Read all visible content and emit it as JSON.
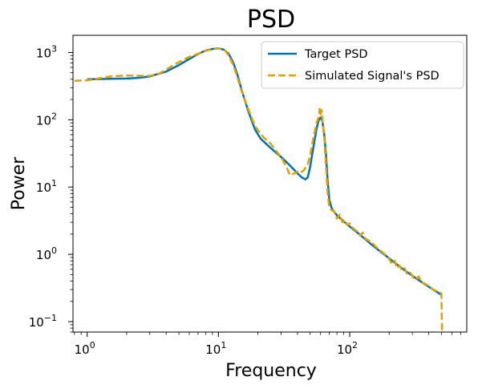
{
  "chart_data": {
    "type": "line",
    "title": "PSD",
    "xlabel": "Frequency",
    "ylabel": "Power",
    "xscale": "log",
    "yscale": "log",
    "xlim": [
      0.78,
      780
    ],
    "ylim": [
      0.07,
      1800
    ],
    "grid": false,
    "legend_position": "top-right",
    "x_ticks": [
      {
        "value": 1,
        "base": "10",
        "exp": "0"
      },
      {
        "value": 10,
        "base": "10",
        "exp": "1"
      },
      {
        "value": 100,
        "base": "10",
        "exp": "2"
      }
    ],
    "y_ticks": [
      {
        "value": 0.1,
        "base": "10",
        "exp": "−1"
      },
      {
        "value": 1,
        "base": "10",
        "exp": "0"
      },
      {
        "value": 10,
        "base": "10",
        "exp": "1"
      },
      {
        "value": 100,
        "base": "10",
        "exp": "2"
      },
      {
        "value": 1000,
        "base": "10",
        "exp": "3"
      }
    ],
    "series": [
      {
        "name": "Target PSD",
        "color": "#0072B2",
        "style": "solid",
        "points": [
          [
            1,
            400
          ],
          [
            1.5,
            405
          ],
          [
            2,
            410
          ],
          [
            2.5,
            420
          ],
          [
            3,
            440
          ],
          [
            4,
            520
          ],
          [
            5,
            650
          ],
          [
            6,
            800
          ],
          [
            7,
            950
          ],
          [
            8,
            1070
          ],
          [
            9,
            1130
          ],
          [
            10,
            1150
          ],
          [
            11,
            1100
          ],
          [
            12,
            950
          ],
          [
            13,
            700
          ],
          [
            14,
            460
          ],
          [
            15,
            280
          ],
          [
            17,
            130
          ],
          [
            19,
            72
          ],
          [
            21,
            52
          ],
          [
            25,
            38
          ],
          [
            30,
            28
          ],
          [
            35,
            21
          ],
          [
            40,
            16
          ],
          [
            43,
            14
          ],
          [
            46,
            13
          ],
          [
            48,
            14
          ],
          [
            50,
            20
          ],
          [
            53,
            40
          ],
          [
            56,
            75
          ],
          [
            58,
            98
          ],
          [
            60,
            108
          ],
          [
            62,
            95
          ],
          [
            64,
            60
          ],
          [
            66,
            30
          ],
          [
            68,
            12
          ],
          [
            70,
            6.5
          ],
          [
            73,
            4.8
          ],
          [
            80,
            3.8
          ],
          [
            90,
            3.1
          ],
          [
            100,
            2.6
          ],
          [
            120,
            1.95
          ],
          [
            150,
            1.35
          ],
          [
            200,
            0.87
          ],
          [
            250,
            0.62
          ],
          [
            300,
            0.48
          ],
          [
            400,
            0.33
          ],
          [
            500,
            0.25
          ]
        ]
      },
      {
        "name": "Simulated Signal's PSD",
        "color": "#E69F00",
        "style": "dashed",
        "points": [
          [
            0.8,
            380
          ],
          [
            1,
            385
          ],
          [
            1.2,
            410
          ],
          [
            1.5,
            440
          ],
          [
            2,
            455
          ],
          [
            2.5,
            450
          ],
          [
            3,
            450
          ],
          [
            3.5,
            480
          ],
          [
            4,
            560
          ],
          [
            5,
            720
          ],
          [
            6,
            860
          ],
          [
            7,
            960
          ],
          [
            8,
            1060
          ],
          [
            9,
            1120
          ],
          [
            10,
            1150
          ],
          [
            11,
            1120
          ],
          [
            12,
            900
          ],
          [
            13,
            640
          ],
          [
            14,
            420
          ],
          [
            15,
            270
          ],
          [
            17,
            140
          ],
          [
            19,
            80
          ],
          [
            22,
            55
          ],
          [
            25,
            44
          ],
          [
            28,
            33
          ],
          [
            30,
            28
          ],
          [
            33,
            20
          ],
          [
            35,
            15
          ],
          [
            38,
            16
          ],
          [
            40,
            17
          ],
          [
            42,
            16
          ],
          [
            45,
            18
          ],
          [
            48,
            22
          ],
          [
            50,
            30
          ],
          [
            53,
            55
          ],
          [
            56,
            90
          ],
          [
            58,
            110
          ],
          [
            59,
            145
          ],
          [
            60,
            120
          ],
          [
            61,
            140
          ],
          [
            62,
            100
          ],
          [
            64,
            55
          ],
          [
            66,
            20
          ],
          [
            68,
            8
          ],
          [
            70,
            5
          ],
          [
            73,
            4.5
          ],
          [
            76,
            4.4
          ],
          [
            80,
            3.4
          ],
          [
            84,
            3.9
          ],
          [
            88,
            3.0
          ],
          [
            92,
            3.2
          ],
          [
            96,
            2.7
          ],
          [
            100,
            2.9
          ],
          [
            105,
            2.5
          ],
          [
            110,
            2.3
          ],
          [
            115,
            2.2
          ],
          [
            120,
            1.9
          ],
          [
            126,
            2.1
          ],
          [
            132,
            1.7
          ],
          [
            140,
            1.6
          ],
          [
            148,
            1.5
          ],
          [
            155,
            1.35
          ],
          [
            162,
            1.25
          ],
          [
            170,
            1.15
          ],
          [
            180,
            1.05
          ],
          [
            190,
            0.95
          ],
          [
            200,
            0.85
          ],
          [
            210,
            0.72
          ],
          [
            220,
            0.8
          ],
          [
            230,
            0.62
          ],
          [
            240,
            0.68
          ],
          [
            250,
            0.58
          ],
          [
            262,
            0.62
          ],
          [
            275,
            0.5
          ],
          [
            290,
            0.53
          ],
          [
            305,
            0.45
          ],
          [
            320,
            0.42
          ],
          [
            335,
            0.47
          ],
          [
            350,
            0.39
          ],
          [
            370,
            0.37
          ],
          [
            390,
            0.35
          ],
          [
            410,
            0.33
          ],
          [
            430,
            0.3
          ],
          [
            450,
            0.29
          ],
          [
            470,
            0.28
          ],
          [
            490,
            0.27
          ],
          [
            500,
            0.26
          ],
          [
            505,
            0.07
          ]
        ]
      }
    ]
  }
}
